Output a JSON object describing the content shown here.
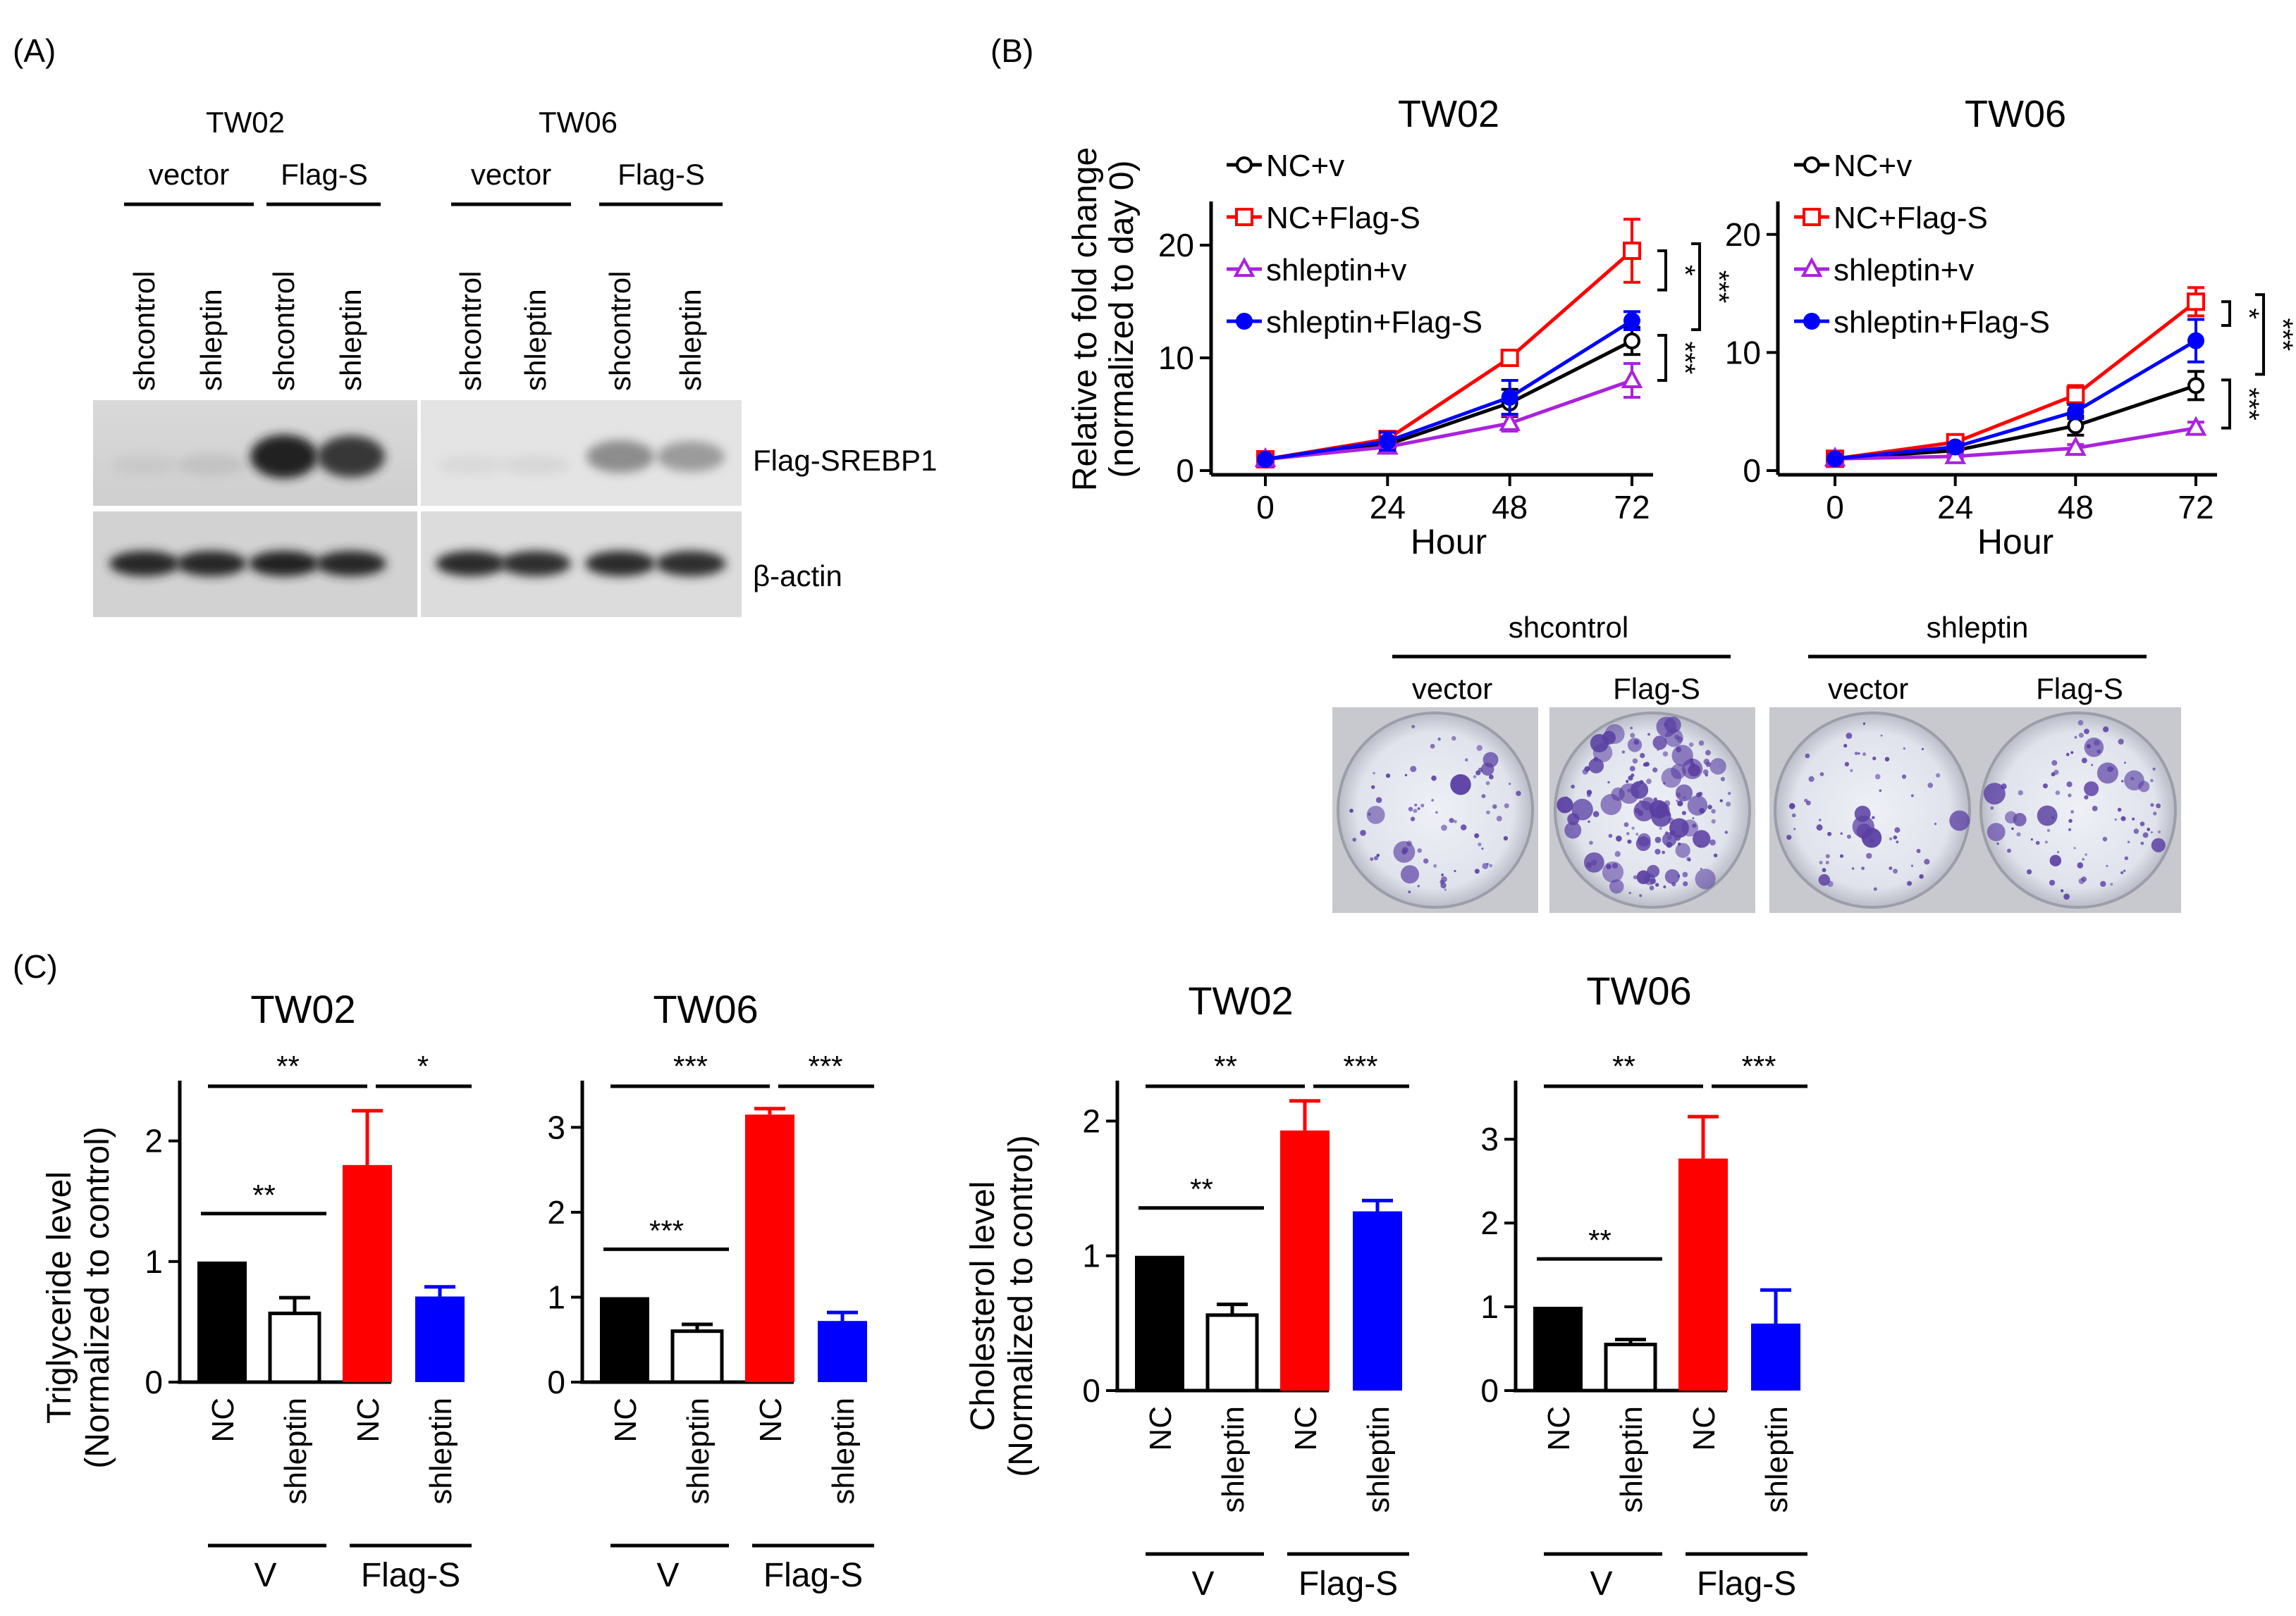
{
  "panels": {
    "A": {
      "label": "(A)",
      "cells": [
        "TW02",
        "TW06"
      ],
      "groups": [
        "vector",
        "Flag-S",
        "vector",
        "Flag-S"
      ],
      "lanes": [
        "shcontrol",
        "shleptin",
        "shcontrol",
        "shleptin",
        "shcontrol",
        "shleptin",
        "shcontrol",
        "shleptin"
      ],
      "bands": [
        "Flag-SREBP1",
        "β-actin"
      ],
      "flag_intensity": [
        0.12,
        0.18,
        0.95,
        0.88,
        0.06,
        0.08,
        0.55,
        0.48
      ],
      "actin_intensity": [
        0.9,
        0.9,
        0.92,
        0.9,
        0.88,
        0.86,
        0.88,
        0.87
      ]
    },
    "B": {
      "label": "(B)",
      "colony_header": {
        "groups": [
          "shcontrol",
          "shleptin"
        ],
        "sub": [
          "vector",
          "Flag-S",
          "vector",
          "Flag-S"
        ]
      }
    },
    "C": {
      "label": "(C)"
    }
  },
  "colors": {
    "NC+v": "#000000",
    "NC+Flag-S": "#ff0000",
    "shleptin+v": "#aa22dd",
    "shleptin+Flag-S": "#0000ff",
    "colony": "#5a3fa3"
  },
  "chart_data": [
    {
      "id": "B-TW02",
      "type": "line",
      "title": "TW02",
      "xlabel": "Hour",
      "ylabel": [
        "Relative to fold change",
        "(normalized to day 0)"
      ],
      "x": [
        0,
        24,
        48,
        72
      ],
      "xticks": [
        "0",
        "24",
        "48",
        "72"
      ],
      "ylim": [
        0,
        22
      ],
      "yticks": [
        "0",
        "10",
        "20"
      ],
      "series": [
        {
          "name": "NC+v",
          "color": "#000000",
          "marker": "circle",
          "values": [
            1,
            2.3,
            6,
            11.5
          ],
          "err": [
            0.1,
            0.4,
            1.2,
            1.2
          ]
        },
        {
          "name": "NC+Flag-S",
          "color": "#ff0000",
          "marker": "square",
          "values": [
            1,
            2.8,
            10,
            19.5
          ],
          "err": [
            0.1,
            0.4,
            0.5,
            2.8
          ]
        },
        {
          "name": "shleptin+v",
          "color": "#aa22dd",
          "marker": "triangle",
          "values": [
            1,
            2.1,
            4.2,
            8
          ],
          "err": [
            0.1,
            0.3,
            0.7,
            1.5
          ]
        },
        {
          "name": "shleptin+Flag-S",
          "color": "#0000ff",
          "marker": "circle",
          "values": [
            1,
            2.6,
            6.5,
            13.3
          ],
          "err": [
            0.1,
            0.8,
            1.5,
            0.8
          ]
        }
      ],
      "sig": [
        "*",
        "***",
        "***"
      ]
    },
    {
      "id": "B-TW06",
      "type": "line",
      "title": "TW06",
      "xlabel": "Hour",
      "ylabel": [],
      "x": [
        0,
        24,
        48,
        72
      ],
      "xticks": [
        "0",
        "24",
        "48",
        "72"
      ],
      "ylim": [
        0,
        21
      ],
      "yticks": [
        "0",
        "10",
        "20"
      ],
      "series": [
        {
          "name": "NC+v",
          "color": "#000000",
          "marker": "circle",
          "values": [
            1,
            1.7,
            3.8,
            7.2
          ],
          "err": [
            0.1,
            0.3,
            0.8,
            1.2
          ]
        },
        {
          "name": "NC+Flag-S",
          "color": "#ff0000",
          "marker": "square",
          "values": [
            1,
            2.4,
            6.4,
            14.3
          ],
          "err": [
            0.1,
            0.3,
            0.8,
            1.2
          ]
        },
        {
          "name": "shleptin+v",
          "color": "#aa22dd",
          "marker": "triangle",
          "values": [
            1,
            1.2,
            1.9,
            3.6
          ],
          "err": [
            0.1,
            0.2,
            0.3,
            0.5
          ]
        },
        {
          "name": "shleptin+Flag-S",
          "color": "#0000ff",
          "marker": "circle",
          "values": [
            1,
            2,
            5,
            11
          ],
          "err": [
            0.1,
            0.3,
            0.6,
            1.8
          ]
        }
      ],
      "sig": [
        "*",
        "***",
        "***"
      ]
    },
    {
      "id": "C-TG-TW02",
      "type": "bar",
      "title": "TW02",
      "ylabel": [
        "Triglyceride level",
        "(Normalized to control)"
      ],
      "ylim": [
        0,
        2.5
      ],
      "yticks": [
        "0",
        "1",
        "2"
      ],
      "ytick_values": [
        0,
        1,
        2
      ],
      "categories": [
        "NC",
        "shleptin",
        "NC",
        "shleptin"
      ],
      "values": [
        1.0,
        0.57,
        1.8,
        0.71
      ],
      "err": [
        0,
        0.13,
        0.45,
        0.08
      ],
      "fills": [
        "#000000",
        "#ffffff",
        "#ff0000",
        "#0000ff"
      ],
      "groups": [
        "V",
        "Flag-S"
      ],
      "sig": {
        "v_pair": "**",
        "nc_pair": "**",
        "flag_pair": "*"
      }
    },
    {
      "id": "C-TG-TW06",
      "type": "bar",
      "title": "TW06",
      "ylabel": [],
      "ylim": [
        0,
        3.55
      ],
      "yticks": [
        "0",
        "1",
        "2",
        "3"
      ],
      "ytick_values": [
        0,
        1,
        2,
        3
      ],
      "categories": [
        "NC",
        "shleptin",
        "NC",
        "shleptin"
      ],
      "values": [
        1.0,
        0.6,
        3.15,
        0.72
      ],
      "err": [
        0,
        0.08,
        0.07,
        0.1
      ],
      "fills": [
        "#000000",
        "#ffffff",
        "#ff0000",
        "#0000ff"
      ],
      "groups": [
        "V",
        "Flag-S"
      ],
      "sig": {
        "v_pair": "***",
        "nc_pair": "***",
        "flag_pair": "***"
      }
    },
    {
      "id": "C-CH-TW02",
      "type": "bar",
      "title": "TW02",
      "ylabel": [
        "Cholesterol level",
        "(Normalized to control)"
      ],
      "ylim": [
        0,
        2.3
      ],
      "yticks": [
        "0",
        "1",
        "2"
      ],
      "ytick_values": [
        0,
        1,
        2
      ],
      "categories": [
        "NC",
        "shleptin",
        "NC",
        "shleptin"
      ],
      "values": [
        1.0,
        0.56,
        1.93,
        1.33
      ],
      "err": [
        0,
        0.08,
        0.22,
        0.08
      ],
      "fills": [
        "#000000",
        "#ffffff",
        "#ff0000",
        "#0000ff"
      ],
      "groups": [
        "V",
        "Flag-S"
      ],
      "sig": {
        "v_pair": "**",
        "nc_pair": "**",
        "flag_pair": "***"
      }
    },
    {
      "id": "C-CH-TW06",
      "type": "bar",
      "title": "TW06",
      "ylabel": [],
      "ylim": [
        0,
        3.7
      ],
      "yticks": [
        "0",
        "1",
        "2",
        "3"
      ],
      "ytick_values": [
        0,
        1,
        2,
        3
      ],
      "categories": [
        "NC",
        "shleptin",
        "NC",
        "shleptin"
      ],
      "values": [
        1.0,
        0.55,
        2.77,
        0.8
      ],
      "err": [
        0,
        0.06,
        0.5,
        0.4
      ],
      "fills": [
        "#000000",
        "#ffffff",
        "#ff0000",
        "#0000ff"
      ],
      "groups": [
        "V",
        "Flag-S"
      ],
      "sig": {
        "v_pair": "**",
        "nc_pair": "**",
        "flag_pair": "***"
      }
    }
  ]
}
